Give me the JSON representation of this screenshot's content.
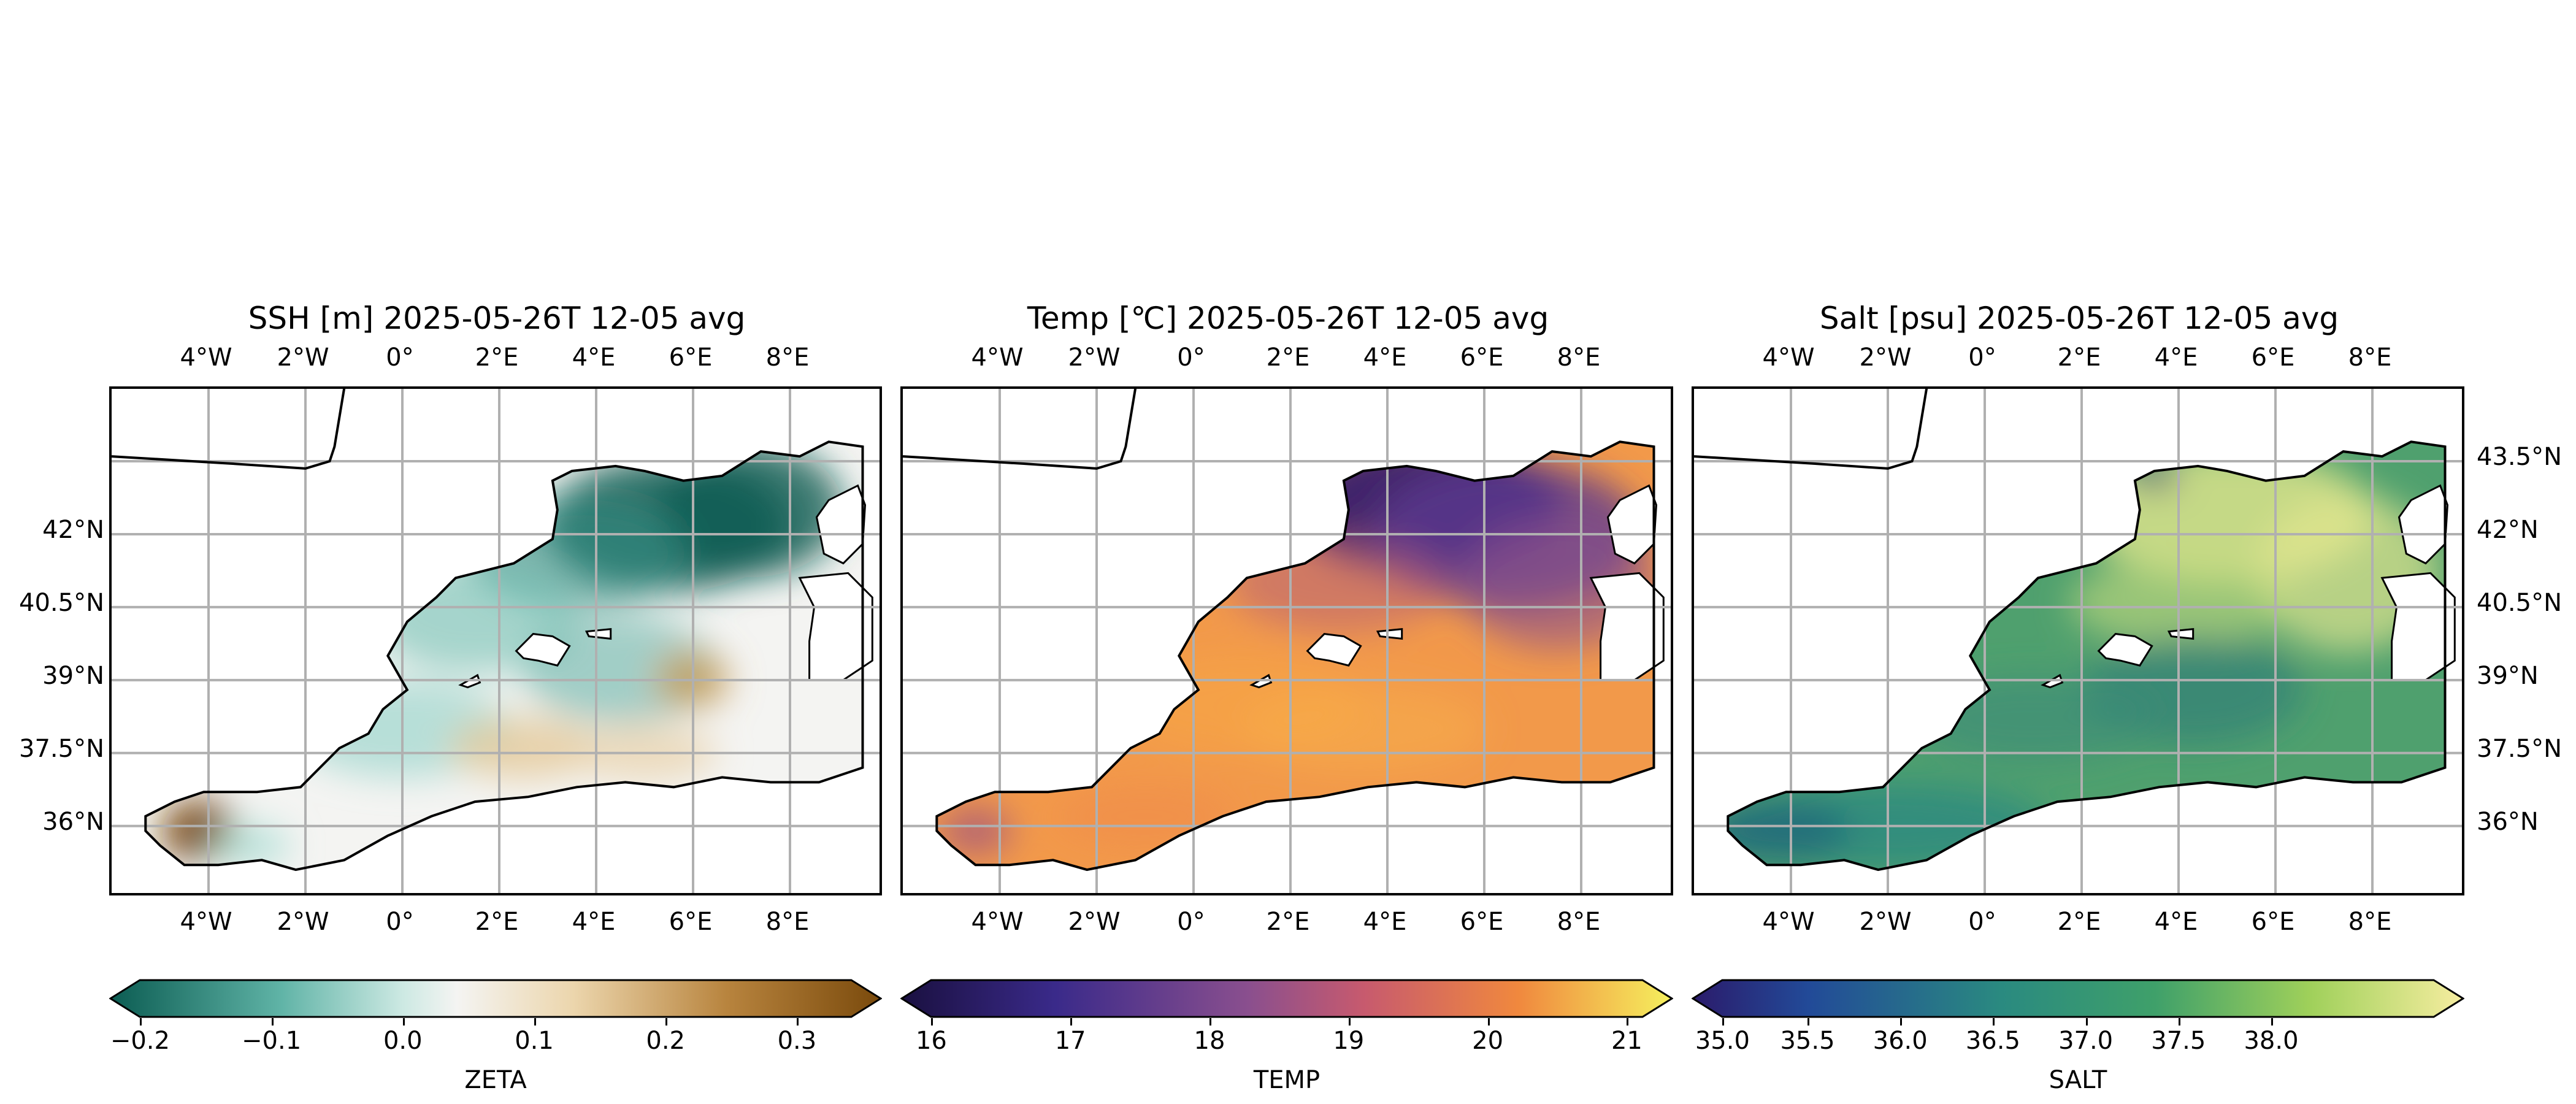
{
  "panels": [
    {
      "id": "zeta",
      "title": "SSH [m] 2025-05-26T 12-05 avg",
      "colorbar_label": "ZETA",
      "colorbar_ticks": [
        "−0.2",
        "−0.1",
        "0.0",
        "0.1",
        "0.2",
        "0.3"
      ],
      "colormap": "brown-white-teal diverging",
      "lat_ticks_side": "none"
    },
    {
      "id": "temp",
      "title": "Temp [℃] 2025-05-26T 12-05 avg",
      "colorbar_label": "TEMP",
      "colorbar_ticks": [
        "16",
        "17",
        "18",
        "19",
        "20",
        "21"
      ],
      "colormap": "navy-purple-orange-yellow",
      "lat_ticks_side": "none"
    },
    {
      "id": "salt",
      "title": "Salt [psu] 2025-05-26T 12-05 avg",
      "colorbar_label": "SALT",
      "colorbar_ticks": [
        "35.0",
        "35.5",
        "36.0",
        "36.5",
        "37.0",
        "37.5",
        "38.0"
      ],
      "colormap": "indigo-teal-green-yellow",
      "lat_ticks_side": "right"
    }
  ],
  "lon_ticks": [
    "4°W",
    "2°W",
    "0°",
    "2°E",
    "4°E",
    "6°E",
    "8°E"
  ],
  "lat_ticks": [
    "43.5°N",
    "42°N",
    "40.5°N",
    "39°N",
    "37.5°N",
    "36°N"
  ],
  "colors": {
    "land": "#ffffff",
    "coastline": "#000000",
    "gridline": "#b0b0b0",
    "zeta_neg": "#0b5c52",
    "zeta_mid": "#f4f4f2",
    "zeta_pos": "#7a4a0c",
    "temp_low": "#1a1040",
    "temp_mid": "#c75a6e",
    "temp_high": "#f5f05e",
    "salt_low": "#2b1b6b",
    "salt_mid": "#2a8a80",
    "salt_high": "#f6eda0"
  }
}
